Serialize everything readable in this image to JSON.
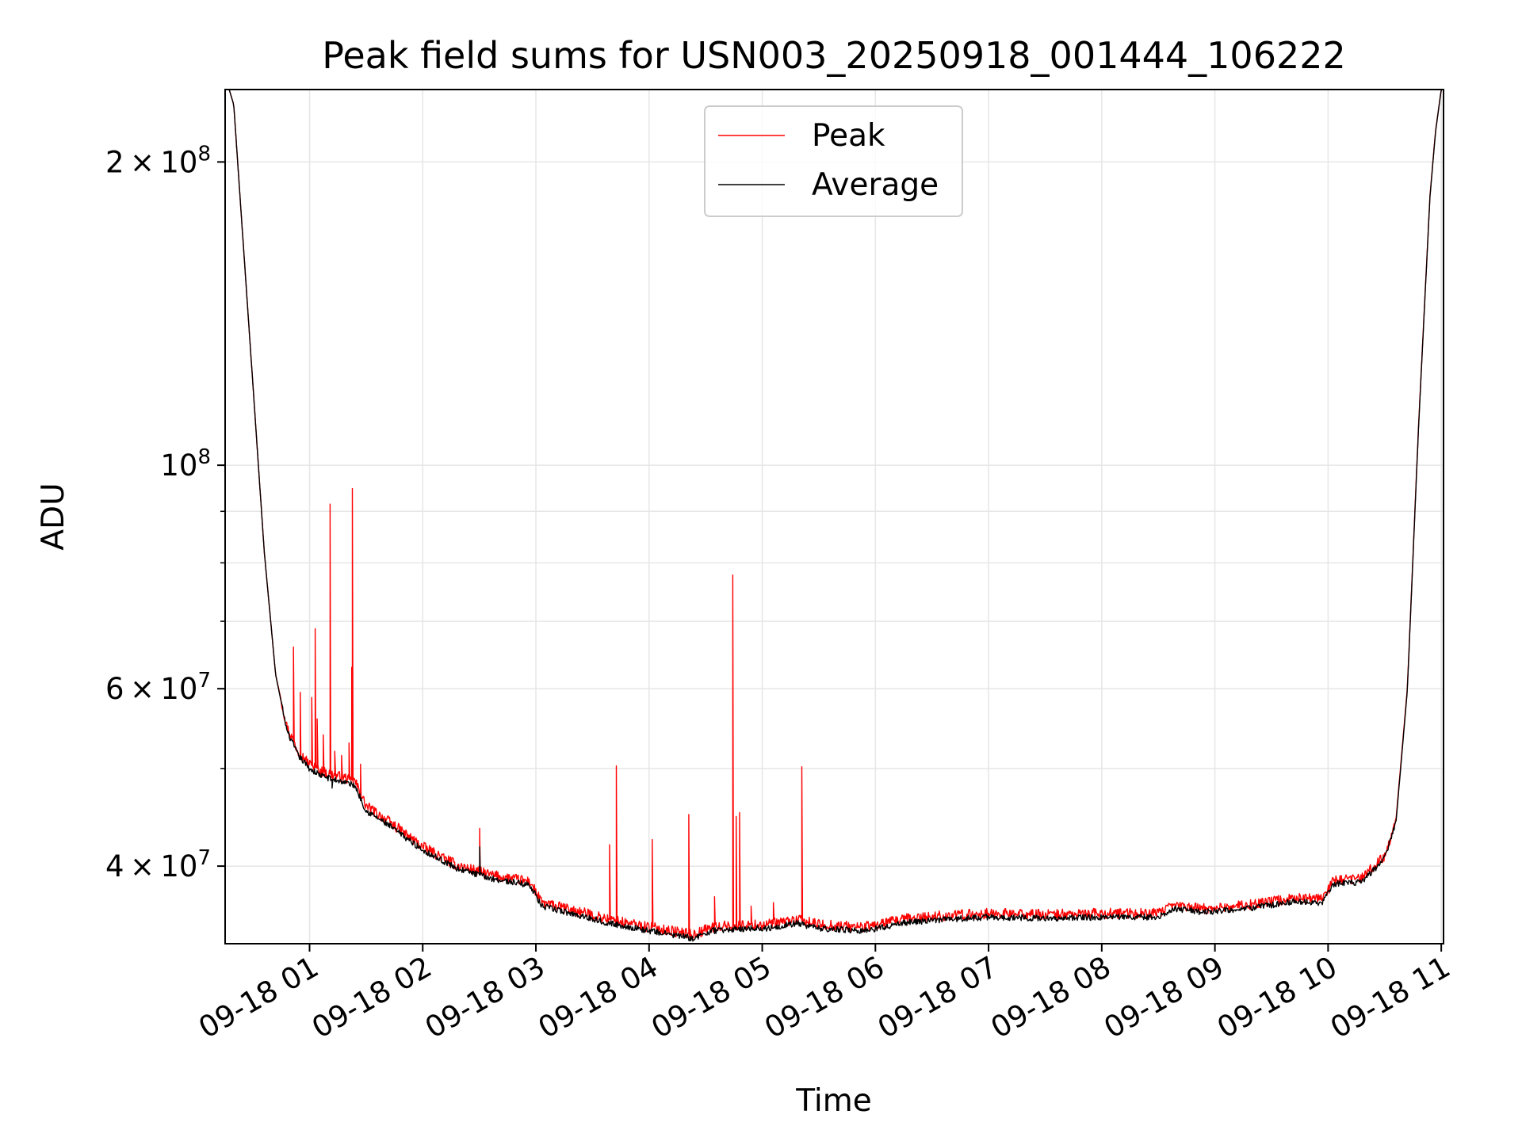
{
  "chart_data": {
    "type": "line",
    "title": "Peak field sums for USN003_20250918_001444_106222",
    "xlabel": "Time",
    "ylabel": "ADU",
    "yscale": "log",
    "ylim": [
      33500000,
      236000000
    ],
    "xlim": [
      0.254,
      11.02
    ],
    "x_unit": "hours after 09-18 00:00",
    "grid": true,
    "legend_position": "upper center",
    "x_ticks": [
      {
        "value": 1,
        "label": "09-18 01"
      },
      {
        "value": 2,
        "label": "09-18 02"
      },
      {
        "value": 3,
        "label": "09-18 03"
      },
      {
        "value": 4,
        "label": "09-18 04"
      },
      {
        "value": 5,
        "label": "09-18 05"
      },
      {
        "value": 6,
        "label": "09-18 06"
      },
      {
        "value": 7,
        "label": "09-18 07"
      },
      {
        "value": 8,
        "label": "09-18 08"
      },
      {
        "value": 9,
        "label": "09-18 09"
      },
      {
        "value": 10,
        "label": "09-18 10"
      },
      {
        "value": 11,
        "label": "09-18 11"
      }
    ],
    "y_major_ticks": [
      {
        "value": 40000000,
        "mant": "4",
        "exp": "7"
      },
      {
        "value": 60000000,
        "mant": "6",
        "exp": "7"
      },
      {
        "value": 100000000,
        "mant": "",
        "exp": "8"
      },
      {
        "value": 200000000,
        "mant": "2",
        "exp": "8"
      }
    ],
    "y_times_sign": "×",
    "y_base": "10",
    "y_minor_ticks": [
      50000000,
      70000000,
      80000000,
      90000000
    ],
    "series": [
      {
        "name": "Peak",
        "color": "#ff0000",
        "baseline": [
          [
            0.254,
            236000000
          ],
          [
            0.29,
            236000000
          ],
          [
            0.33,
            228000000
          ],
          [
            0.4,
            175000000
          ],
          [
            0.5,
            120000000
          ],
          [
            0.6,
            82000000
          ],
          [
            0.7,
            62000000
          ],
          [
            0.8,
            55000000
          ],
          [
            0.9,
            52000000
          ],
          [
            1.0,
            50500000
          ],
          [
            1.1,
            49700000
          ],
          [
            1.2,
            49300000
          ],
          [
            1.3,
            49000000
          ],
          [
            1.4,
            48600000
          ],
          [
            1.5,
            45900000
          ],
          [
            1.7,
            44300000
          ],
          [
            2.0,
            41800000
          ],
          [
            2.3,
            40100000
          ],
          [
            2.6,
            39200000
          ],
          [
            2.95,
            38600000
          ],
          [
            3.05,
            36800000
          ],
          [
            3.4,
            36000000
          ],
          [
            3.7,
            35300000
          ],
          [
            4.0,
            34800000
          ],
          [
            4.4,
            34200000
          ],
          [
            4.55,
            34800000
          ],
          [
            4.9,
            35000000
          ],
          [
            5.05,
            35000000
          ],
          [
            5.3,
            35400000
          ],
          [
            5.5,
            35000000
          ],
          [
            5.9,
            34800000
          ],
          [
            6.3,
            35500000
          ],
          [
            6.6,
            35700000
          ],
          [
            7.0,
            35900000
          ],
          [
            7.5,
            35800000
          ],
          [
            8.0,
            35900000
          ],
          [
            8.5,
            35900000
          ],
          [
            8.65,
            36600000
          ],
          [
            8.9,
            36300000
          ],
          [
            9.3,
            36600000
          ],
          [
            9.7,
            37200000
          ],
          [
            9.95,
            37100000
          ],
          [
            10.05,
            38700000
          ],
          [
            10.3,
            38900000
          ],
          [
            10.5,
            41000000
          ],
          [
            10.6,
            44500000
          ],
          [
            10.7,
            60000000
          ],
          [
            10.8,
            110000000
          ],
          [
            10.9,
            185000000
          ],
          [
            10.95,
            215000000
          ],
          [
            11.0,
            236000000
          ],
          [
            11.02,
            236000000
          ]
        ],
        "spikes": [
          [
            0.86,
            66000000
          ],
          [
            0.92,
            59500000
          ],
          [
            1.02,
            58800000
          ],
          [
            1.05,
            68800000
          ],
          [
            1.07,
            56000000
          ],
          [
            1.12,
            54000000
          ],
          [
            1.18,
            91500000
          ],
          [
            1.22,
            52000000
          ],
          [
            1.28,
            51500000
          ],
          [
            1.35,
            53000000
          ],
          [
            1.37,
            63000000
          ],
          [
            1.38,
            94800000
          ],
          [
            1.45,
            50500000
          ],
          [
            2.5,
            43600000
          ],
          [
            3.65,
            42000000
          ],
          [
            3.71,
            50300000
          ],
          [
            4.03,
            42500000
          ],
          [
            4.35,
            45000000
          ],
          [
            4.58,
            37300000
          ],
          [
            4.74,
            77800000
          ],
          [
            4.77,
            44800000
          ],
          [
            4.8,
            45200000
          ],
          [
            4.9,
            36500000
          ],
          [
            5.1,
            36800000
          ],
          [
            5.35,
            50200000
          ]
        ]
      },
      {
        "name": "Average",
        "color": "#000000",
        "baseline": [
          [
            0.254,
            236000000
          ],
          [
            0.29,
            236000000
          ],
          [
            0.33,
            228000000
          ],
          [
            0.4,
            175000000
          ],
          [
            0.5,
            120000000
          ],
          [
            0.6,
            82000000
          ],
          [
            0.7,
            62000000
          ],
          [
            0.8,
            54500000
          ],
          [
            0.9,
            51500000
          ],
          [
            1.0,
            50000000
          ],
          [
            1.1,
            49200000
          ],
          [
            1.2,
            48800000
          ],
          [
            1.3,
            48500000
          ],
          [
            1.4,
            48100000
          ],
          [
            1.5,
            45400000
          ],
          [
            1.7,
            43900000
          ],
          [
            2.0,
            41500000
          ],
          [
            2.3,
            39800000
          ],
          [
            2.6,
            38900000
          ],
          [
            2.95,
            38300000
          ],
          [
            3.05,
            36500000
          ],
          [
            3.4,
            35700000
          ],
          [
            3.7,
            35000000
          ],
          [
            4.0,
            34500000
          ],
          [
            4.4,
            33900000
          ],
          [
            4.55,
            34500000
          ],
          [
            4.9,
            34700000
          ],
          [
            5.05,
            34700000
          ],
          [
            5.3,
            35100000
          ],
          [
            5.5,
            34700000
          ],
          [
            5.9,
            34500000
          ],
          [
            6.3,
            35200000
          ],
          [
            6.6,
            35400000
          ],
          [
            7.0,
            35600000
          ],
          [
            7.5,
            35500000
          ],
          [
            8.0,
            35600000
          ],
          [
            8.5,
            35600000
          ],
          [
            8.65,
            36300000
          ],
          [
            8.9,
            36000000
          ],
          [
            9.3,
            36300000
          ],
          [
            9.7,
            36900000
          ],
          [
            9.95,
            36800000
          ],
          [
            10.05,
            38400000
          ],
          [
            10.3,
            38600000
          ],
          [
            10.5,
            40700000
          ],
          [
            10.6,
            44200000
          ],
          [
            10.7,
            59700000
          ],
          [
            10.8,
            109500000
          ],
          [
            10.9,
            184500000
          ],
          [
            10.95,
            214500000
          ],
          [
            11.0,
            236000000
          ],
          [
            11.02,
            236000000
          ]
        ],
        "spikes": [
          [
            1.2,
            47800000
          ],
          [
            1.38,
            48200000
          ],
          [
            2.5,
            41800000
          ]
        ]
      }
    ]
  }
}
